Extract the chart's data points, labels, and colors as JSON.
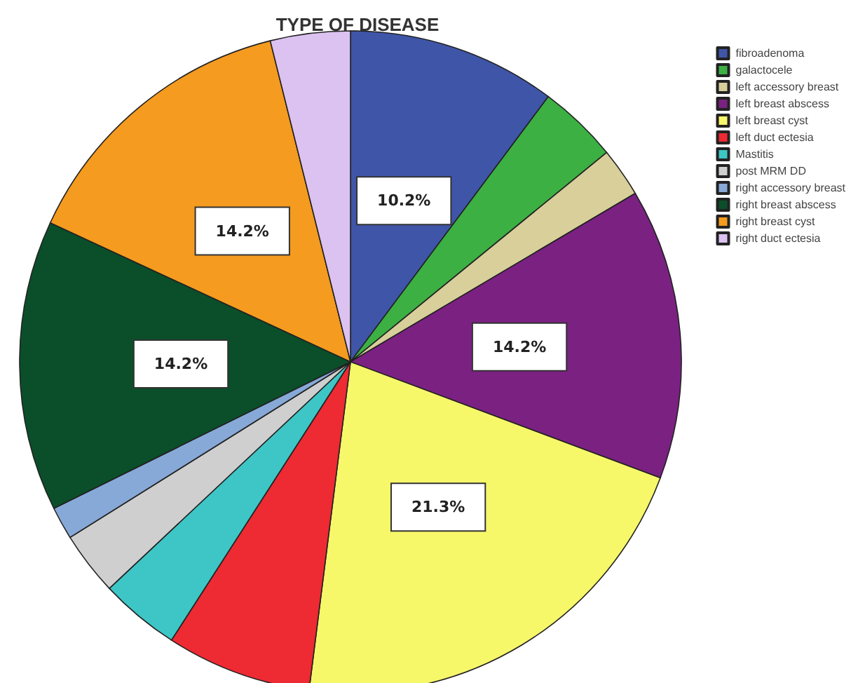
{
  "chart_data": {
    "type": "pie",
    "title": "TYPE OF DISEASE",
    "categories": [
      "fibroadenoma",
      "galactocele",
      "left accessory breast",
      "left breast abscess",
      "left breast cyst",
      "left duct ectesia",
      "Mastitis",
      "post MRM DD",
      "right accessory breast",
      "right breast abscess",
      "right breast cyst",
      "right duct ectesia"
    ],
    "values": [
      10.2,
      3.9,
      2.4,
      14.2,
      21.3,
      7.1,
      3.9,
      3.1,
      1.6,
      14.2,
      14.2,
      3.9
    ],
    "colors": [
      "#3f55a8",
      "#3cb043",
      "#d8cf9a",
      "#7b2182",
      "#f7f76a",
      "#ee2a33",
      "#3ec6c6",
      "#cfcfcf",
      "#87a9d8",
      "#0a4f2a",
      "#f59b1f",
      "#dcc2f0"
    ],
    "value_labels": [
      "10.2%",
      null,
      null,
      "14.2%",
      "21.3%",
      null,
      null,
      null,
      null,
      "14.2%",
      "14.2%",
      null
    ],
    "legend": "top right"
  }
}
